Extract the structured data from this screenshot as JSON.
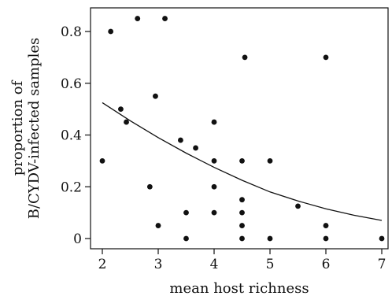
{
  "chart_data": {
    "type": "scatter",
    "title": "",
    "xlabel": "mean host richness",
    "ylabel_lines": [
      "proportion of",
      "B/CYDV-infected samples"
    ],
    "xlim": [
      2,
      7
    ],
    "ylim": [
      0,
      0.85
    ],
    "x_ticks": [
      2,
      3,
      4,
      5,
      6,
      7
    ],
    "y_ticks": [
      0,
      0.2,
      0.4,
      0.6,
      0.8
    ],
    "x_tick_labels": [
      "2",
      "3",
      "4",
      "5",
      "6",
      "7"
    ],
    "y_tick_labels": [
      "0",
      "0.2",
      "0.4",
      "0.6",
      "0.8"
    ],
    "grid": false,
    "point_color": "#111111",
    "line_color": "#111111",
    "points": [
      {
        "x": 2.0,
        "y": 0.3
      },
      {
        "x": 2.15,
        "y": 0.8
      },
      {
        "x": 2.33,
        "y": 0.5
      },
      {
        "x": 2.43,
        "y": 0.45
      },
      {
        "x": 2.63,
        "y": 0.85
      },
      {
        "x": 2.85,
        "y": 0.2
      },
      {
        "x": 2.95,
        "y": 0.55
      },
      {
        "x": 3.0,
        "y": 0.05
      },
      {
        "x": 3.12,
        "y": 0.85
      },
      {
        "x": 3.4,
        "y": 0.38
      },
      {
        "x": 3.5,
        "y": 0.1
      },
      {
        "x": 3.5,
        "y": 0.0
      },
      {
        "x": 3.67,
        "y": 0.35
      },
      {
        "x": 4.0,
        "y": 0.45
      },
      {
        "x": 4.0,
        "y": 0.3
      },
      {
        "x": 4.0,
        "y": 0.2
      },
      {
        "x": 4.0,
        "y": 0.1
      },
      {
        "x": 4.5,
        "y": 0.3
      },
      {
        "x": 4.5,
        "y": 0.15
      },
      {
        "x": 4.5,
        "y": 0.1
      },
      {
        "x": 4.5,
        "y": 0.05
      },
      {
        "x": 4.5,
        "y": 0.0
      },
      {
        "x": 4.55,
        "y": 0.7
      },
      {
        "x": 5.0,
        "y": 0.3
      },
      {
        "x": 5.0,
        "y": 0.0
      },
      {
        "x": 5.5,
        "y": 0.125
      },
      {
        "x": 6.0,
        "y": 0.7
      },
      {
        "x": 6.0,
        "y": 0.05
      },
      {
        "x": 6.0,
        "y": 0.0
      },
      {
        "x": 7.0,
        "y": 0.0
      }
    ],
    "fit_curve": {
      "x": [
        2.0,
        2.5,
        3.0,
        3.5,
        4.0,
        4.5,
        5.0,
        5.5,
        6.0,
        6.5,
        7.0
      ],
      "y": [
        0.525,
        0.455,
        0.39,
        0.33,
        0.275,
        0.225,
        0.18,
        0.145,
        0.115,
        0.09,
        0.07
      ]
    }
  }
}
